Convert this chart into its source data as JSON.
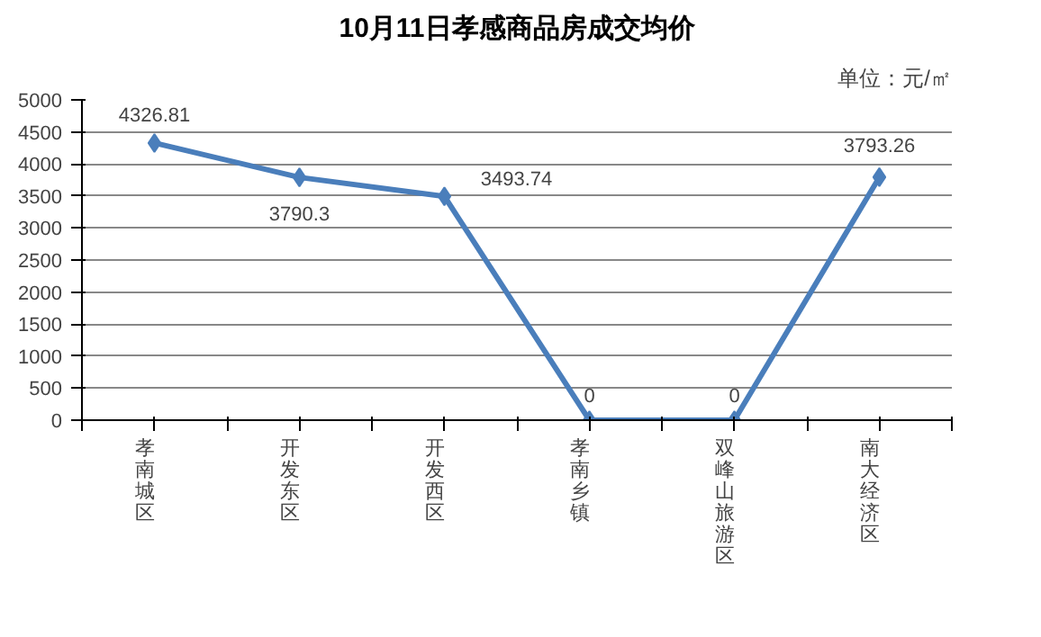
{
  "chart_data": {
    "type": "line",
    "title": "10月11日孝感商品房成交均价",
    "annotations": [
      "单位：元/㎡"
    ],
    "categories": [
      "孝南城区",
      "开发东区",
      "开发西区",
      "孝南乡镇",
      "双峰山旅游区",
      "南大经济区"
    ],
    "series": [
      {
        "color": "#4a7ebb",
        "values": [
          4326.81,
          3790.3,
          3493.74,
          0,
          0,
          3793.26
        ]
      }
    ],
    "ylim": [
      0,
      5000
    ],
    "yticks": [
      0,
      500,
      1000,
      1500,
      2000,
      2500,
      3000,
      3500,
      4000,
      4500,
      5000
    ],
    "grid": "y",
    "marker": "diamond",
    "line_style": "solid",
    "data_labels": true
  }
}
